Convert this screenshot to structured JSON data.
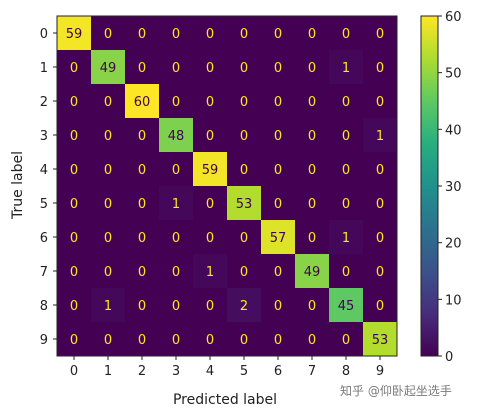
{
  "chart_data": {
    "type": "heatmap",
    "title": "",
    "xlabel": "Predicted label",
    "ylabel": "True label",
    "x_categories": [
      "0",
      "1",
      "2",
      "3",
      "4",
      "5",
      "6",
      "7",
      "8",
      "9"
    ],
    "y_categories": [
      "0",
      "1",
      "2",
      "3",
      "4",
      "5",
      "6",
      "7",
      "8",
      "9"
    ],
    "values": [
      [
        59,
        0,
        0,
        0,
        0,
        0,
        0,
        0,
        0,
        0
      ],
      [
        0,
        49,
        0,
        0,
        0,
        0,
        0,
        0,
        1,
        0
      ],
      [
        0,
        0,
        60,
        0,
        0,
        0,
        0,
        0,
        0,
        0
      ],
      [
        0,
        0,
        0,
        48,
        0,
        0,
        0,
        0,
        0,
        1
      ],
      [
        0,
        0,
        0,
        0,
        59,
        0,
        0,
        0,
        0,
        0
      ],
      [
        0,
        0,
        0,
        1,
        0,
        53,
        0,
        0,
        0,
        0
      ],
      [
        0,
        0,
        0,
        0,
        0,
        0,
        57,
        0,
        1,
        0
      ],
      [
        0,
        0,
        0,
        0,
        1,
        0,
        0,
        49,
        0,
        0
      ],
      [
        0,
        1,
        0,
        0,
        0,
        2,
        0,
        0,
        45,
        0
      ],
      [
        0,
        0,
        0,
        0,
        0,
        0,
        0,
        0,
        0,
        53
      ]
    ],
    "colormap": "viridis",
    "vmin": 0,
    "vmax": 60,
    "colorbar_ticks": [
      0,
      10,
      20,
      30,
      40,
      50,
      60
    ],
    "colorbar_tick_labels": [
      "0",
      "10",
      "20",
      "30",
      "40",
      "50",
      "60"
    ],
    "colors": {
      "low_text": "#fde725",
      "high_text": "#440154"
    }
  },
  "watermark": "知乎 @仰卧起坐选手"
}
